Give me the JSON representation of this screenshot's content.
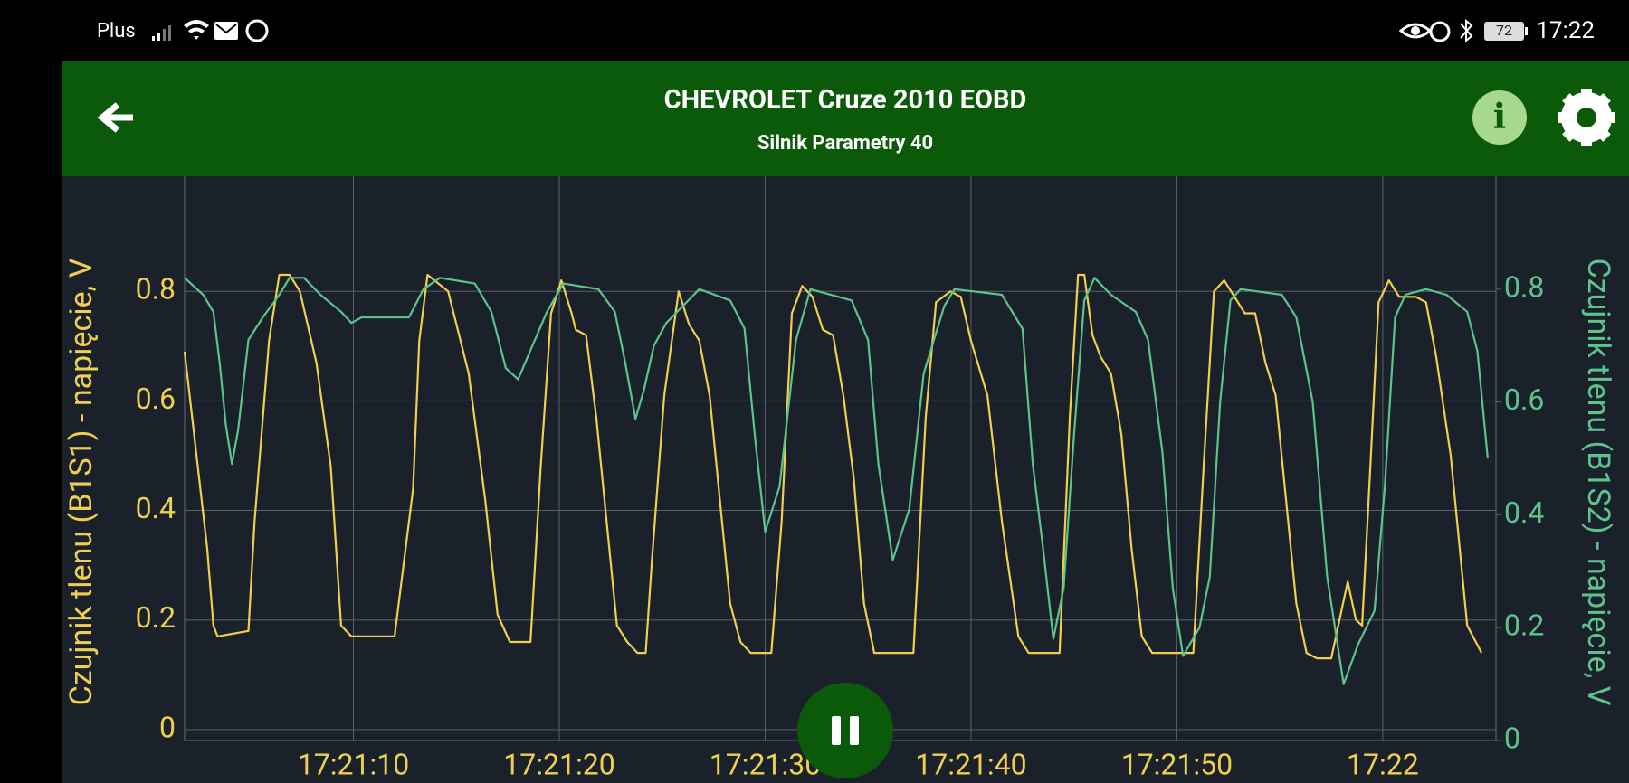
{
  "status_bar": {
    "carrier": "Plus",
    "battery": "72",
    "time": "17:22"
  },
  "header": {
    "title": "CHEVROLET Cruze 2010 EOBD",
    "subtitle": "Silnik Parametry 40"
  },
  "chart_data": {
    "type": "line",
    "y_label": "Czujnik tlenu (B1S1) - napięcie, V",
    "y2_label": "Czujnik tlenu (B1S2) - napięcie, V",
    "xlim": [
      1.8,
      65.5
    ],
    "xticks": [
      {
        "value": 10,
        "label": "17:21:10"
      },
      {
        "value": 20,
        "label": "17:21:20"
      },
      {
        "value": 30,
        "label": "17:21:30"
      },
      {
        "value": 40,
        "label": "17:21:40"
      },
      {
        "value": 50,
        "label": "17:21:50"
      },
      {
        "value": 60,
        "label": "17:22"
      }
    ],
    "ylim": [
      -0.02,
      1.01
    ],
    "yticks": [
      0,
      0.2,
      0.4,
      0.6,
      0.8
    ],
    "y2lim": [
      0,
      1.0
    ],
    "y2ticks": [
      0,
      0.2,
      0.4,
      0.6,
      0.8
    ],
    "grid": true,
    "series": [
      {
        "name": "Czujnik tlenu (B1S1)",
        "color": "#f0cf4e",
        "axis": "y",
        "x": [
          1.8,
          2.9,
          3.2,
          3.4,
          4.9,
          5.2,
          5.9,
          6.4,
          6.9,
          7.4,
          8.2,
          8.9,
          9.4,
          9.9,
          12.0,
          12.9,
          13.2,
          13.6,
          14.6,
          15.6,
          16.4,
          17.0,
          17.6,
          18.6,
          19.1,
          19.6,
          20.1,
          20.6,
          20.8,
          21.3,
          21.8,
          22.3,
          22.8,
          23.3,
          23.8,
          24.2,
          24.5,
          25.1,
          25.8,
          26.3,
          26.8,
          27.3,
          27.8,
          28.3,
          28.8,
          29.3,
          30.3,
          30.8,
          31.3,
          31.8,
          32.3,
          32.8,
          33.3,
          33.8,
          34.3,
          34.8,
          35.3,
          37.2,
          37.8,
          38.3,
          39.0,
          39.5,
          40.0,
          40.8,
          41.5,
          42.3,
          42.8,
          44.3,
          44.8,
          45.2,
          45.5,
          45.9,
          46.3,
          46.8,
          47.3,
          47.8,
          48.3,
          48.8,
          50.8,
          51.3,
          51.8,
          52.3,
          52.8,
          53.3,
          53.8,
          54.3,
          54.8,
          55.3,
          55.8,
          56.3,
          56.8,
          57.5,
          58.3,
          58.7,
          59.0,
          59.4,
          59.8,
          60.3,
          60.8,
          61.6,
          62.1,
          62.6,
          63.3,
          64.1,
          64.8
        ],
        "values": [
          0.69,
          0.33,
          0.19,
          0.17,
          0.18,
          0.38,
          0.71,
          0.83,
          0.83,
          0.8,
          0.67,
          0.48,
          0.19,
          0.17,
          0.17,
          0.44,
          0.71,
          0.83,
          0.8,
          0.65,
          0.42,
          0.21,
          0.16,
          0.16,
          0.48,
          0.76,
          0.82,
          0.76,
          0.73,
          0.72,
          0.57,
          0.38,
          0.19,
          0.16,
          0.14,
          0.14,
          0.31,
          0.61,
          0.8,
          0.74,
          0.71,
          0.61,
          0.42,
          0.23,
          0.16,
          0.14,
          0.14,
          0.38,
          0.76,
          0.81,
          0.79,
          0.73,
          0.72,
          0.61,
          0.46,
          0.23,
          0.14,
          0.14,
          0.57,
          0.78,
          0.8,
          0.79,
          0.71,
          0.61,
          0.38,
          0.17,
          0.14,
          0.14,
          0.57,
          0.83,
          0.83,
          0.72,
          0.68,
          0.65,
          0.54,
          0.33,
          0.17,
          0.14,
          0.14,
          0.48,
          0.8,
          0.82,
          0.79,
          0.76,
          0.76,
          0.67,
          0.61,
          0.42,
          0.23,
          0.14,
          0.13,
          0.13,
          0.27,
          0.2,
          0.19,
          0.48,
          0.78,
          0.82,
          0.79,
          0.79,
          0.78,
          0.68,
          0.5,
          0.19,
          0.14
        ]
      },
      {
        "name": "Czujnik tlenu (B1S2)",
        "color": "#5cc38a",
        "axis": "y2",
        "x": [
          1.8,
          2.7,
          3.2,
          3.5,
          3.8,
          4.1,
          4.4,
          4.9,
          5.6,
          6.4,
          6.9,
          7.6,
          8.4,
          9.4,
          9.9,
          10.4,
          10.9,
          12.7,
          13.4,
          14.2,
          15.9,
          16.7,
          17.4,
          18.0,
          18.7,
          19.4,
          20.2,
          21.9,
          22.7,
          23.2,
          23.7,
          24.1,
          24.6,
          25.2,
          26.0,
          26.8,
          28.3,
          29.0,
          29.5,
          30.0,
          30.7,
          31.5,
          32.2,
          34.2,
          35.0,
          35.5,
          36.2,
          37.0,
          37.7,
          38.7,
          39.2,
          41.5,
          42.5,
          43.0,
          43.5,
          44.0,
          44.5,
          45.0,
          45.5,
          46.0,
          46.8,
          48.0,
          48.6,
          49.3,
          49.8,
          50.3,
          51.1,
          51.6,
          52.1,
          52.6,
          53.1,
          55.1,
          55.8,
          56.6,
          57.3,
          58.1,
          58.8,
          59.6,
          60.1,
          60.6,
          61.1,
          62.1,
          63.1,
          64.1,
          64.6,
          65.1
        ],
        "values": [
          0.82,
          0.79,
          0.76,
          0.67,
          0.56,
          0.49,
          0.55,
          0.71,
          0.75,
          0.79,
          0.82,
          0.82,
          0.79,
          0.76,
          0.74,
          0.75,
          0.75,
          0.75,
          0.8,
          0.82,
          0.81,
          0.76,
          0.66,
          0.64,
          0.7,
          0.76,
          0.81,
          0.8,
          0.76,
          0.67,
          0.57,
          0.62,
          0.7,
          0.74,
          0.77,
          0.8,
          0.78,
          0.73,
          0.54,
          0.37,
          0.45,
          0.71,
          0.8,
          0.78,
          0.71,
          0.49,
          0.32,
          0.41,
          0.65,
          0.77,
          0.8,
          0.79,
          0.73,
          0.49,
          0.34,
          0.18,
          0.27,
          0.54,
          0.78,
          0.82,
          0.79,
          0.76,
          0.71,
          0.51,
          0.27,
          0.15,
          0.2,
          0.29,
          0.6,
          0.78,
          0.8,
          0.79,
          0.75,
          0.6,
          0.29,
          0.1,
          0.17,
          0.23,
          0.45,
          0.75,
          0.79,
          0.8,
          0.79,
          0.76,
          0.69,
          0.5
        ]
      }
    ]
  }
}
